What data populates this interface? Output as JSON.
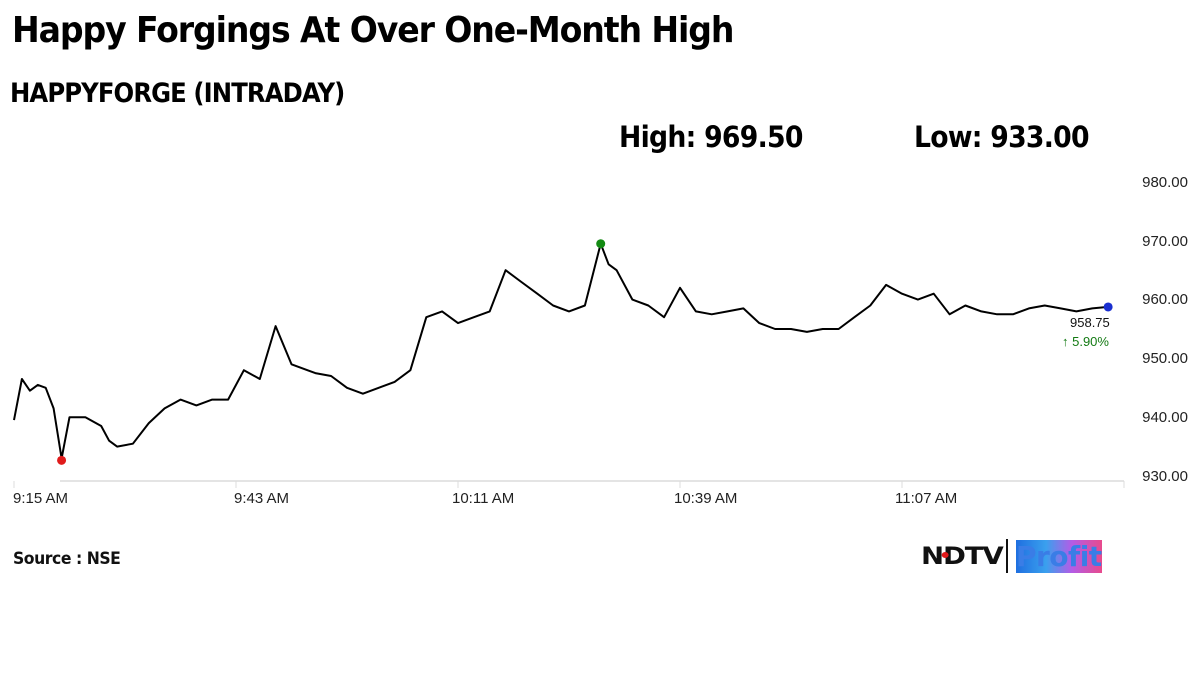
{
  "header": {
    "title": "Happy Forgings At Over One-Month High",
    "subtitle": "HAPPYFORGE (INTRADAY)",
    "high_label": "High: 969.50",
    "low_label": "Low: 933.00"
  },
  "footer": {
    "source": "Source : NSE",
    "logo_left": "NDTV",
    "logo_right": "Profit"
  },
  "last": {
    "price": "958.75",
    "change": "↑ 5.90%"
  },
  "colors": {
    "line": "#000000",
    "high_marker": "#138a13",
    "low_marker": "#e01b1b",
    "last_marker": "#1a2fd0",
    "change_up": "#137a13",
    "axis": "#d9d9d9"
  },
  "chart_data": {
    "type": "line",
    "title": "HAPPYFORGE (INTRADAY)",
    "xlabel": "",
    "ylabel": "",
    "ylim": [
      930,
      980
    ],
    "yticks": [
      "980.00",
      "970.00",
      "960.00",
      "950.00",
      "940.00",
      "930.00"
    ],
    "xticks": [
      "9:15 AM",
      "9:43 AM",
      "10:11 AM",
      "10:39 AM",
      "11:07 AM"
    ],
    "grid": false,
    "high": 969.5,
    "low": 933.0,
    "last": 958.75,
    "change_pct": 5.9,
    "series": [
      {
        "name": "HAPPYFORGE",
        "x": [
          "9:15",
          "9:16",
          "9:17",
          "9:18",
          "9:19",
          "9:20",
          "9:21",
          "9:22",
          "9:24",
          "9:26",
          "9:27",
          "9:28",
          "9:30",
          "9:32",
          "9:34",
          "9:36",
          "9:38",
          "9:40",
          "9:42",
          "9:44",
          "9:46",
          "9:48",
          "9:50",
          "9:52",
          "9:53",
          "9:55",
          "9:57",
          "9:59",
          "10:01",
          "10:03",
          "10:05",
          "10:07",
          "10:09",
          "10:11",
          "10:13",
          "10:15",
          "10:17",
          "10:19",
          "10:21",
          "10:23",
          "10:25",
          "10:27",
          "10:29",
          "10:30",
          "10:31",
          "10:33",
          "10:35",
          "10:37",
          "10:39",
          "10:41",
          "10:43",
          "10:45",
          "10:47",
          "10:49",
          "10:51",
          "10:53",
          "10:55",
          "10:57",
          "10:59",
          "11:01",
          "11:03",
          "11:05",
          "11:07",
          "11:09",
          "11:11",
          "11:13",
          "11:15",
          "11:17",
          "11:19",
          "11:21",
          "11:23",
          "11:25",
          "11:27",
          "11:29",
          "11:31",
          "11:33"
        ],
        "values": [
          939.5,
          946.5,
          944.5,
          945.5,
          945,
          941.5,
          933,
          940,
          940,
          938.5,
          936,
          935,
          935.5,
          939,
          941.5,
          943,
          942,
          943,
          943,
          948,
          946.5,
          955.5,
          949,
          948,
          947.5,
          947,
          945,
          944,
          945,
          946,
          948,
          957,
          958,
          956,
          957,
          958,
          965,
          963,
          961,
          959,
          958,
          959,
          969.5,
          966,
          965,
          960,
          959,
          957,
          962,
          958,
          957.5,
          958,
          958.5,
          956,
          955,
          955,
          954.5,
          955,
          955,
          957,
          959,
          962.5,
          961,
          960,
          961,
          957.5,
          959,
          958,
          957.5,
          957.5,
          958.5,
          959,
          958.5,
          958,
          958.5,
          958.75
        ]
      }
    ]
  }
}
